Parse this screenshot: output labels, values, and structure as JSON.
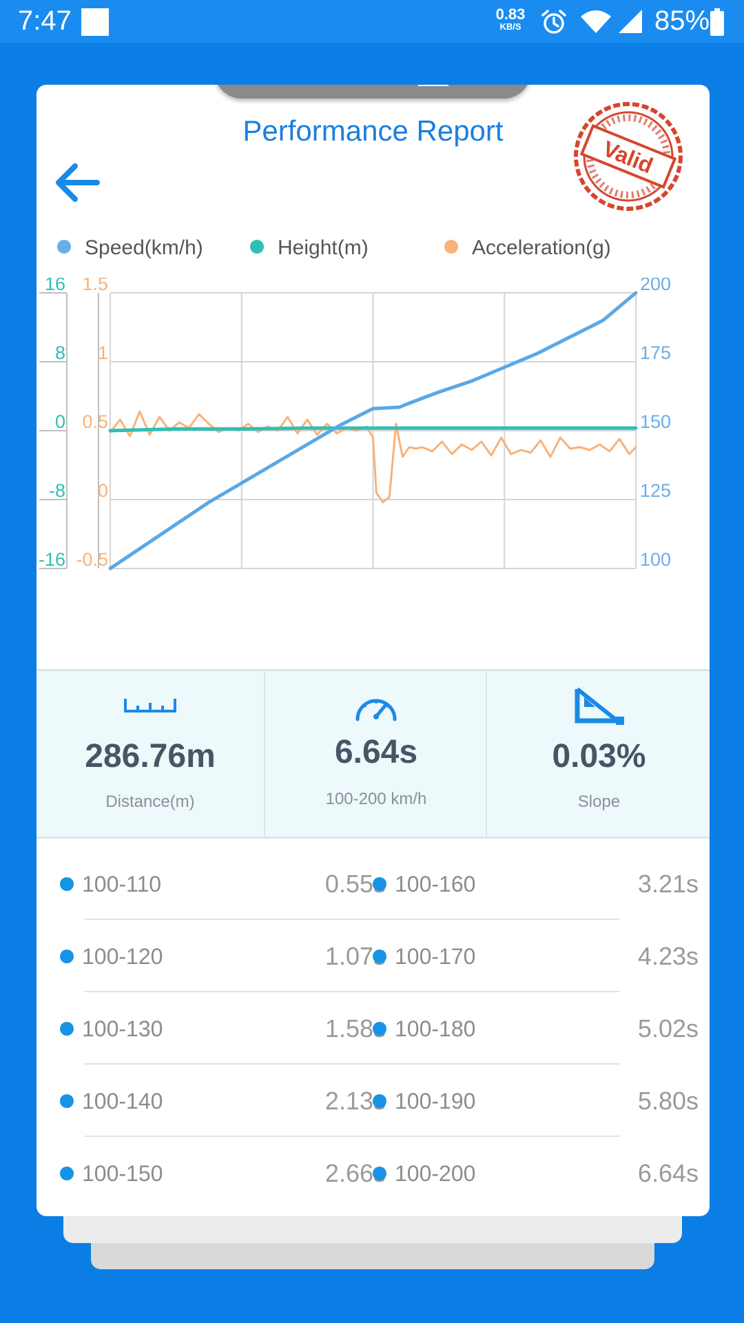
{
  "status_bar": {
    "time": "7:47",
    "net_speed_value": "0.83",
    "net_speed_unit": "KB/S",
    "battery": "85%"
  },
  "card": {
    "title": "Performance Report",
    "stamp_text": "Valid"
  },
  "legend": [
    {
      "label": "Speed(km/h)",
      "color": "#6aaee8"
    },
    {
      "label": "Height(m)",
      "color": "#2fbfb5"
    },
    {
      "label": "Acceleration(g)",
      "color": "#f8b27a"
    }
  ],
  "chart_data": {
    "type": "line",
    "axes": {
      "height_ticks": [
        "16",
        "8",
        "0",
        "-8",
        "-16"
      ],
      "accel_ticks": [
        "1.5",
        "1",
        "0.5",
        "0",
        "-0.5"
      ],
      "speed_ticks": [
        "200",
        "175",
        "150",
        "125",
        "100"
      ],
      "height_range": [
        -16,
        16
      ],
      "accel_range": [
        -0.5,
        1.5
      ],
      "speed_range": [
        100,
        200
      ],
      "x_range": [
        0,
        8
      ]
    },
    "grid": true,
    "series": [
      {
        "name": "Speed(km/h)",
        "color": "#5aa8e6",
        "x": [
          0,
          0.5,
          1,
          1.5,
          2,
          2.5,
          3,
          3.5,
          4,
          4.4,
          4.5,
          5,
          5.5,
          6,
          6.5,
          7,
          7.5,
          8
        ],
        "y": [
          100,
          108,
          116,
          124,
          131,
          138,
          145,
          152,
          158,
          158.5,
          159.5,
          164,
          168,
          173,
          178,
          184,
          190,
          200
        ]
      },
      {
        "name": "Height(m)",
        "color": "#2fbfb5",
        "x": [
          0,
          1,
          2,
          3,
          4,
          5,
          6,
          7,
          8
        ],
        "y": [
          0,
          0.2,
          0.2,
          0.3,
          0.3,
          0.3,
          0.3,
          0.3,
          0.3
        ]
      },
      {
        "name": "Acceleration(g)",
        "color": "#f8b27a",
        "x": [
          0,
          0.15,
          0.3,
          0.45,
          0.6,
          0.75,
          0.9,
          1.05,
          1.2,
          1.35,
          1.5,
          1.65,
          1.8,
          1.95,
          2.1,
          2.25,
          2.4,
          2.55,
          2.7,
          2.85,
          3.0,
          3.15,
          3.3,
          3.45,
          3.6,
          3.75,
          3.9,
          4.0,
          4.05,
          4.15,
          4.25,
          4.35,
          4.45,
          4.55,
          4.65,
          4.75,
          4.9,
          5.05,
          5.2,
          5.35,
          5.5,
          5.65,
          5.8,
          5.95,
          6.1,
          6.25,
          6.4,
          6.55,
          6.7,
          6.85,
          7.0,
          7.15,
          7.3,
          7.45,
          7.6,
          7.75,
          7.9,
          8.0
        ],
        "y": [
          0.49,
          0.58,
          0.46,
          0.64,
          0.47,
          0.6,
          0.5,
          0.56,
          0.52,
          0.62,
          0.55,
          0.49,
          0.52,
          0.5,
          0.55,
          0.49,
          0.53,
          0.5,
          0.6,
          0.48,
          0.58,
          0.47,
          0.55,
          0.48,
          0.52,
          0.5,
          0.53,
          0.45,
          0.05,
          -0.02,
          0.02,
          0.55,
          0.31,
          0.38,
          0.37,
          0.38,
          0.35,
          0.42,
          0.33,
          0.4,
          0.36,
          0.42,
          0.32,
          0.45,
          0.33,
          0.36,
          0.34,
          0.43,
          0.31,
          0.45,
          0.37,
          0.38,
          0.36,
          0.4,
          0.35,
          0.44,
          0.33,
          0.38
        ]
      }
    ]
  },
  "stats": [
    {
      "value": "286.76m",
      "label": "Distance(m)",
      "icon": "ruler-icon"
    },
    {
      "value": "6.64s",
      "label": "100-200 km/h",
      "icon": "speedometer-icon"
    },
    {
      "value": "0.03%",
      "label": "Slope",
      "icon": "slope-icon"
    }
  ],
  "splits_left": [
    {
      "range": "100-110",
      "time": "0.55s"
    },
    {
      "range": "100-120",
      "time": "1.07s"
    },
    {
      "range": "100-130",
      "time": "1.58s"
    },
    {
      "range": "100-140",
      "time": "2.13s"
    },
    {
      "range": "100-150",
      "time": "2.66s"
    }
  ],
  "splits_right": [
    {
      "range": "100-160",
      "time": "3.21s"
    },
    {
      "range": "100-170",
      "time": "4.23s"
    },
    {
      "range": "100-180",
      "time": "5.02s"
    },
    {
      "range": "100-190",
      "time": "5.80s"
    },
    {
      "range": "100-200",
      "time": "6.64s"
    }
  ]
}
